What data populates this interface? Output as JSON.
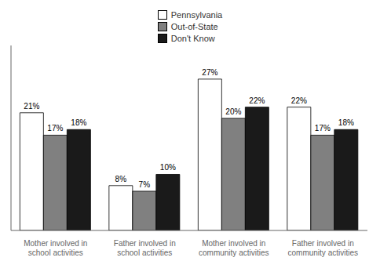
{
  "chart_data": {
    "type": "bar",
    "categories": [
      "Mother involved in\nschool activities",
      "Father involved in\nschool activities",
      "Mother involved in\ncommunity activities",
      "Father involved in\ncommunity activities"
    ],
    "series": [
      {
        "name": "Pennsylvania",
        "color": "#ffffff",
        "values": [
          21,
          8,
          27,
          22
        ],
        "value_labels": [
          "21%",
          "8%",
          "27%",
          "22%"
        ]
      },
      {
        "name": "Out-of-State",
        "color": "#808080",
        "values": [
          17,
          7,
          20,
          17
        ],
        "value_labels": [
          "17%",
          "7%",
          "20%",
          "17%"
        ]
      },
      {
        "name": "Don't Know",
        "color": "#1a1a1a",
        "values": [
          18,
          10,
          22,
          18
        ],
        "value_labels": [
          "18%",
          "10%",
          "22%",
          "18%"
        ]
      }
    ],
    "ylim": [
      0,
      33
    ],
    "data_labels": true,
    "tick_labels": "x",
    "legend": "top",
    "grid": false
  }
}
